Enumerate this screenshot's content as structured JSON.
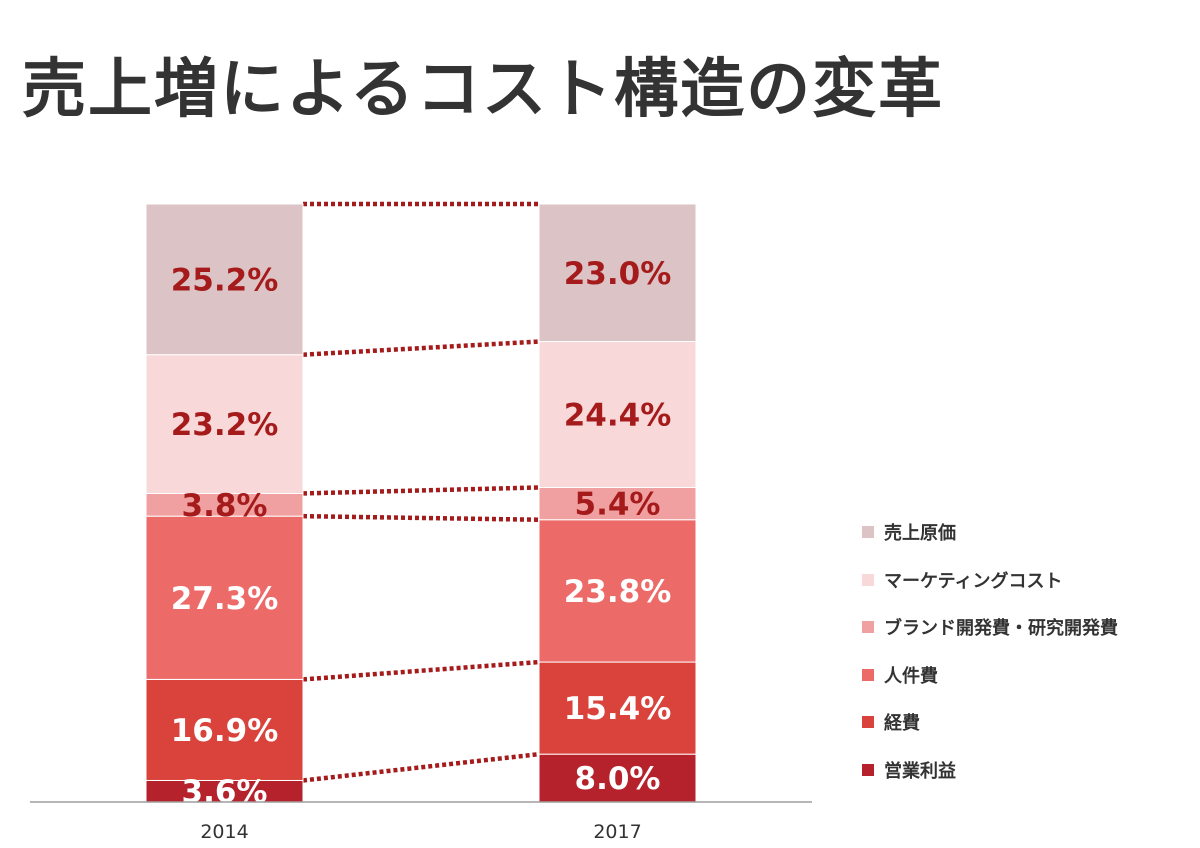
{
  "title": "売上増によるコスト構造の変革",
  "chart_data": {
    "type": "bar",
    "stacked": true,
    "categories": [
      "2014",
      "2017"
    ],
    "series": [
      {
        "name": "営業利益",
        "values": [
          3.6,
          8.0
        ],
        "labels": [
          "3.6%",
          "8.0%"
        ],
        "color": "#b5222c",
        "label_color": "#ffffff"
      },
      {
        "name": "経費",
        "values": [
          16.9,
          15.4
        ],
        "labels": [
          "16.9%",
          "15.4%"
        ],
        "color": "#d9433b",
        "label_color": "#ffffff"
      },
      {
        "name": "人件費",
        "values": [
          27.3,
          23.8
        ],
        "labels": [
          "27.3%",
          "23.8%"
        ],
        "color": "#ec6b69",
        "label_color": "#ffffff"
      },
      {
        "name": "ブランド開発費・研究開発費",
        "values": [
          3.8,
          5.4
        ],
        "labels": [
          "3.8%",
          "5.4%"
        ],
        "color": "#f0a0a0",
        "label_color": "#a51b1b"
      },
      {
        "name": "マーケティングコスト",
        "values": [
          23.2,
          24.4
        ],
        "labels": [
          "23.2%",
          "24.4%"
        ],
        "color": "#f8d8d8",
        "label_color": "#a51b1b"
      },
      {
        "name": "売上原価",
        "values": [
          25.2,
          23.0
        ],
        "labels": [
          "25.2%",
          "23.0%"
        ],
        "color": "#dcc3c5",
        "label_color": "#a51b1b"
      }
    ],
    "ylim": [
      0,
      100
    ],
    "grid": false,
    "legend_position": "right",
    "connector_color": "#a51b1b"
  }
}
